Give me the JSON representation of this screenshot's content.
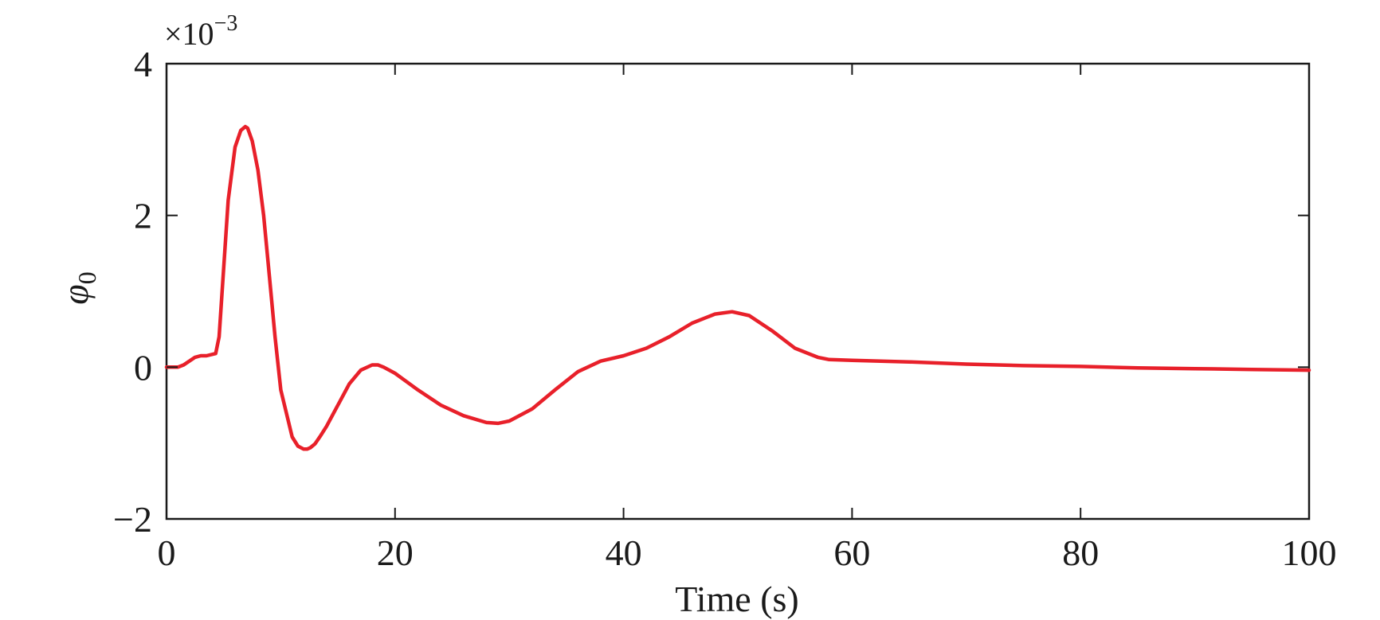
{
  "chart_data": {
    "type": "line",
    "title": "",
    "xlabel": "Time (s)",
    "ylabel_symbol": "φ",
    "ylabel_subscript": "0",
    "y_multiplier_prefix": "×10",
    "y_multiplier_exponent": "−3",
    "xlim": [
      0,
      100
    ],
    "ylim": [
      -2,
      4
    ],
    "x_ticks": [
      0,
      20,
      40,
      60,
      80,
      100
    ],
    "x_tick_labels": [
      "0",
      "20",
      "40",
      "60",
      "80",
      "100"
    ],
    "y_ticks": [
      -2,
      0,
      2,
      4
    ],
    "y_tick_labels": [
      "−2",
      "0",
      "2",
      "4"
    ],
    "grid": false,
    "legend": "none",
    "series": [
      {
        "color": "#e8202a",
        "x": [
          0,
          1,
          1.5,
          2.5,
          3,
          3.5,
          4.3,
          4.6,
          5,
          5.4,
          6,
          6.5,
          6.9,
          7.1,
          7.5,
          8,
          8.5,
          9,
          9.5,
          10,
          11,
          11.5,
          12,
          12.3,
          12.6,
          13,
          13.5,
          14,
          15,
          16,
          17,
          18,
          18.5,
          19,
          20,
          22,
          24,
          26,
          28,
          29,
          30,
          32,
          34,
          36,
          38,
          40,
          42,
          44,
          46,
          48,
          49.5,
          51,
          53,
          55,
          57,
          58,
          60,
          65,
          70,
          75,
          80,
          85,
          90,
          95,
          100
        ],
        "y": [
          -0.0,
          0.0,
          0.03,
          0.13,
          0.15,
          0.15,
          0.18,
          0.4,
          1.3,
          2.2,
          2.9,
          3.12,
          3.17,
          3.15,
          2.98,
          2.6,
          2.0,
          1.2,
          0.4,
          -0.3,
          -0.92,
          -1.04,
          -1.08,
          -1.08,
          -1.06,
          -1.01,
          -0.9,
          -0.78,
          -0.5,
          -0.22,
          -0.04,
          0.03,
          0.03,
          0.0,
          -0.08,
          -0.3,
          -0.5,
          -0.64,
          -0.73,
          -0.74,
          -0.71,
          -0.55,
          -0.3,
          -0.06,
          0.08,
          0.15,
          0.25,
          0.4,
          0.58,
          0.7,
          0.73,
          0.68,
          0.48,
          0.25,
          0.13,
          0.1,
          0.09,
          0.07,
          0.04,
          0.02,
          0.01,
          -0.01,
          -0.02,
          -0.03,
          -0.04
        ]
      }
    ]
  }
}
